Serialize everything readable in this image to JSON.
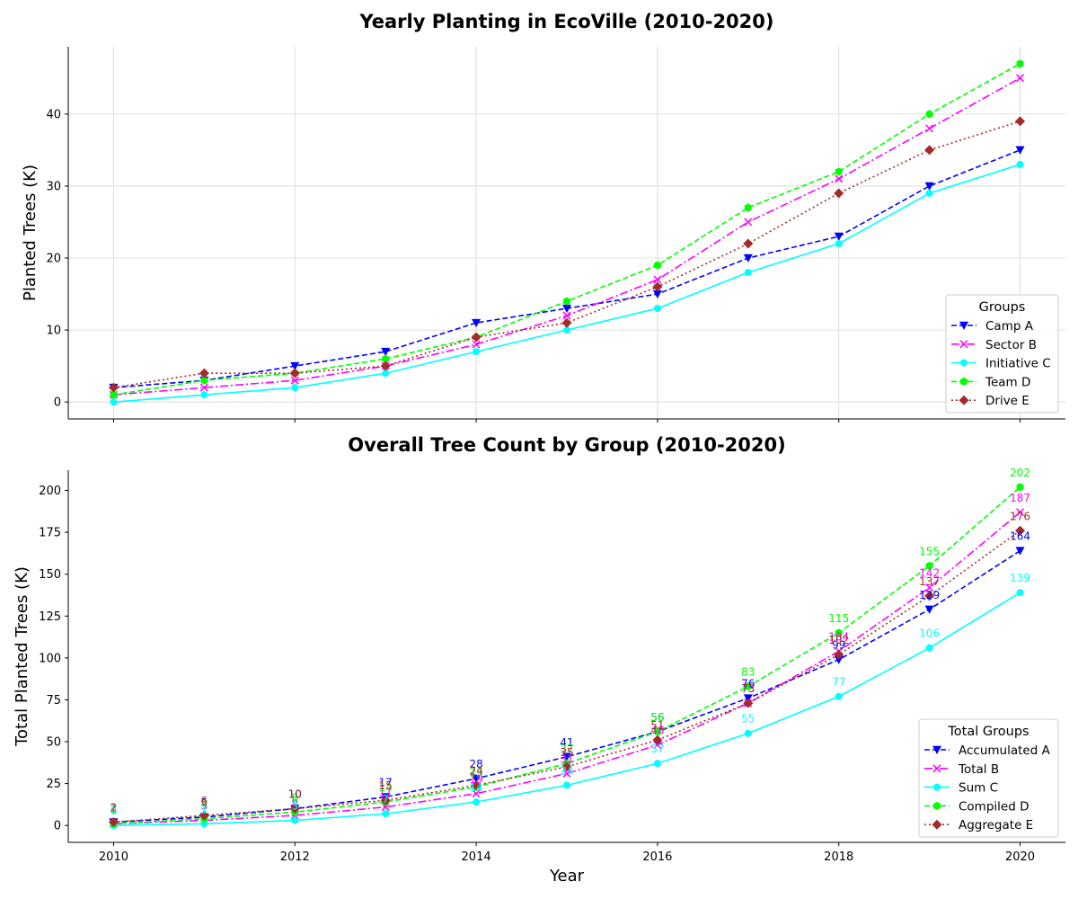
{
  "chart_data": [
    {
      "type": "line",
      "title": "Yearly Planting in EcoVille (2010-2020)",
      "xlabel": "",
      "ylabel": "Planted Trees (K)",
      "x": [
        2010,
        2011,
        2012,
        2013,
        2014,
        2015,
        2016,
        2017,
        2018,
        2019,
        2020
      ],
      "xlim": [
        2009.5,
        2020.5
      ],
      "ylim": [
        -2.35,
        49.35
      ],
      "yticks": [
        0,
        10,
        20,
        30,
        40
      ],
      "xticks": [
        2010,
        2012,
        2014,
        2016,
        2018,
        2020
      ],
      "show_xtick_labels": false,
      "grid": true,
      "legend": {
        "title": "Groups",
        "placement": "lower right"
      },
      "series": [
        {
          "name": "Camp A",
          "color": "#0000ff",
          "marker": "triangle-down",
          "linestyle": "dashed",
          "values": [
            2,
            3,
            5,
            7,
            11,
            13,
            15,
            20,
            23,
            30,
            35
          ]
        },
        {
          "name": "Sector B",
          "color": "#ff00ff",
          "marker": "x",
          "linestyle": "dashdot",
          "values": [
            1,
            2,
            3,
            5,
            8,
            12,
            17,
            25,
            31,
            38,
            45
          ]
        },
        {
          "name": "Initiative C",
          "color": "#00ffff",
          "marker": "circle",
          "linestyle": "solid",
          "values": [
            0,
            1,
            2,
            4,
            7,
            10,
            13,
            18,
            22,
            29,
            33
          ]
        },
        {
          "name": "Team D",
          "color": "#00ff00",
          "marker": "hexagon",
          "linestyle": "dashed",
          "values": [
            1,
            3,
            4,
            6,
            9,
            14,
            19,
            27,
            32,
            40,
            47
          ]
        },
        {
          "name": "Drive E",
          "color": "#a52a2a",
          "marker": "diamond",
          "linestyle": "dotted",
          "values": [
            2,
            4,
            4,
            5,
            9,
            11,
            16,
            22,
            29,
            35,
            39
          ]
        }
      ]
    },
    {
      "type": "line",
      "title": "Overall Tree Count by Group (2010-2020)",
      "xlabel": "Year",
      "ylabel": "Total Planted Trees (K)",
      "x": [
        2010,
        2011,
        2012,
        2013,
        2014,
        2015,
        2016,
        2017,
        2018,
        2019,
        2020
      ],
      "xlim": [
        2009.5,
        2020.5
      ],
      "ylim": [
        -10.1,
        212.1
      ],
      "yticks": [
        0,
        25,
        50,
        75,
        100,
        125,
        150,
        175,
        200
      ],
      "xticks": [
        2010,
        2012,
        2014,
        2016,
        2018,
        2020
      ],
      "show_xtick_labels": true,
      "grid": false,
      "data_labels": true,
      "legend": {
        "title": "Total Groups",
        "placement": "lower right"
      },
      "series": [
        {
          "name": "Accumulated A",
          "color": "#0000ff",
          "marker": "triangle-down",
          "linestyle": "dashed",
          "values": [
            2,
            5,
            10,
            17,
            28,
            41,
            56,
            76,
            99,
            129,
            164
          ]
        },
        {
          "name": "Total B",
          "color": "#ff00ff",
          "marker": "x",
          "linestyle": "dashdot",
          "values": [
            1,
            3,
            6,
            11,
            19,
            31,
            48,
            73,
            104,
            142,
            187
          ]
        },
        {
          "name": "Sum C",
          "color": "#00ffff",
          "marker": "circle",
          "linestyle": "solid",
          "values": [
            0,
            1,
            3,
            7,
            14,
            24,
            37,
            55,
            77,
            106,
            139
          ]
        },
        {
          "name": "Compiled D",
          "color": "#00ff00",
          "marker": "hexagon",
          "linestyle": "dashed",
          "values": [
            1,
            4,
            8,
            14,
            23,
            37,
            56,
            83,
            115,
            155,
            202
          ]
        },
        {
          "name": "Aggregate E",
          "color": "#a52a2a",
          "marker": "diamond",
          "linestyle": "dotted",
          "values": [
            2,
            6,
            10,
            15,
            24,
            35,
            51,
            73,
            102,
            137,
            176
          ]
        }
      ]
    }
  ]
}
